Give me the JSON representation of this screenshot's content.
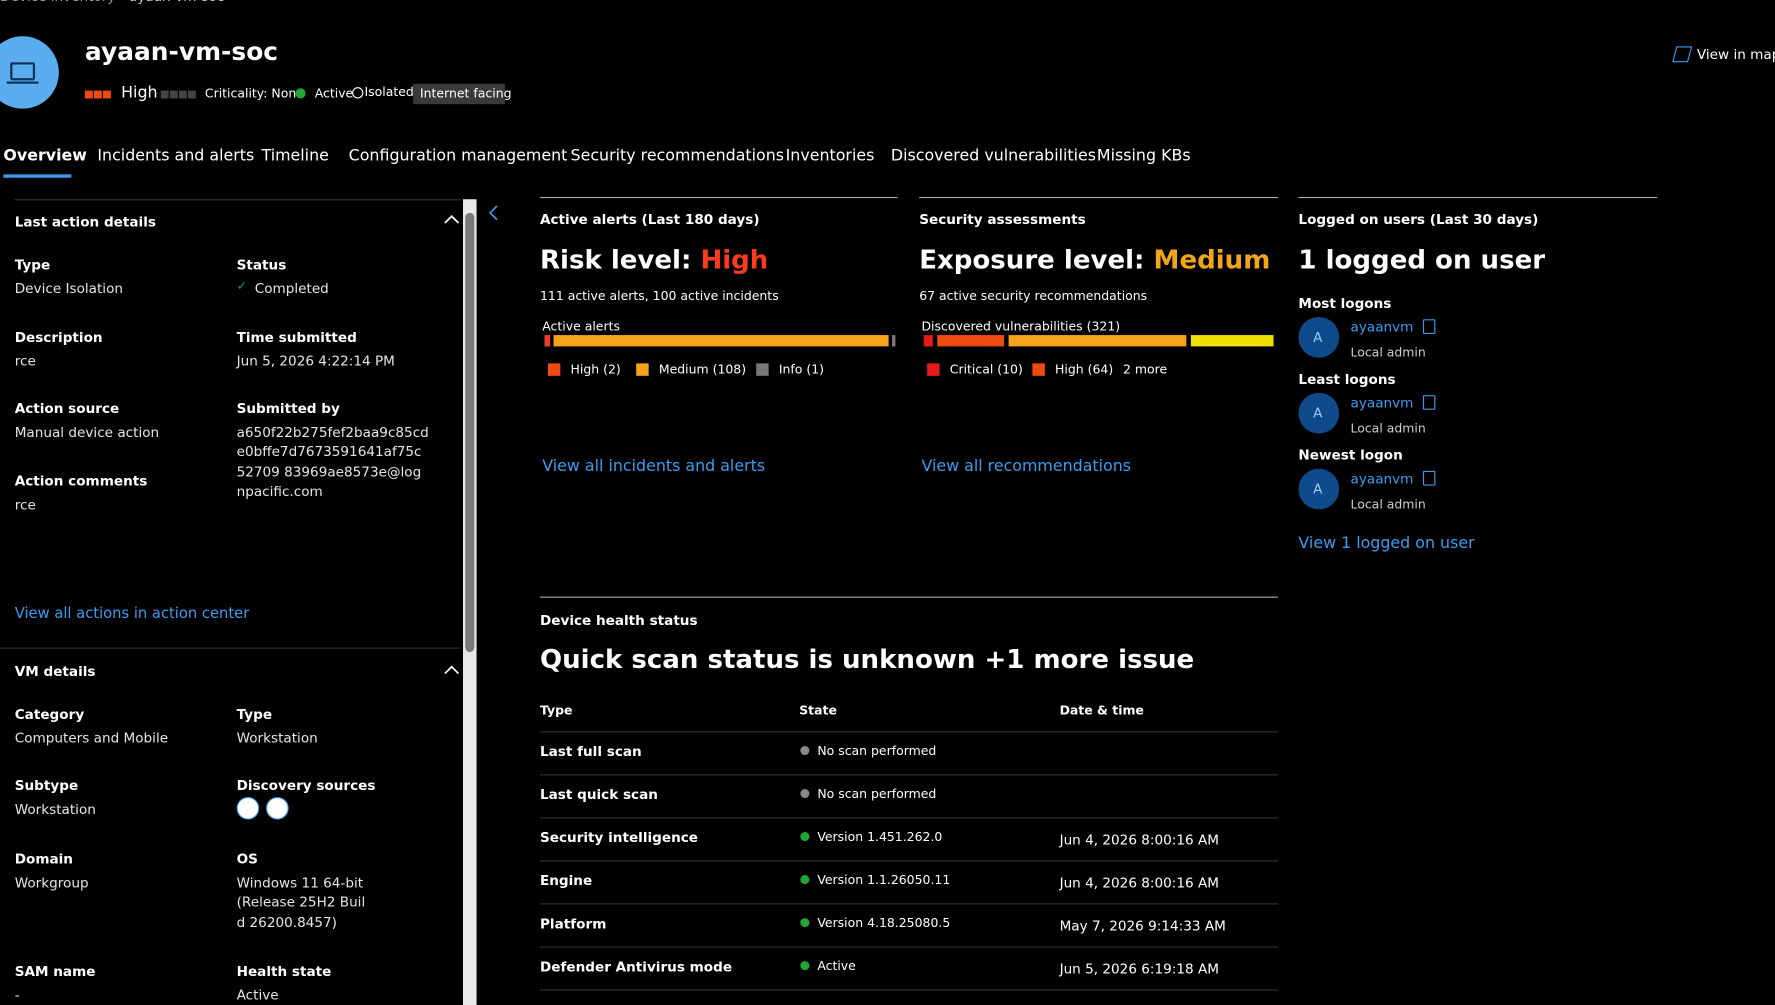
{
  "breadcrumb": [
    "Device inventory",
    "ayaan-vm-soc"
  ],
  "header": {
    "title": "ayaan-vm-soc",
    "risk": "High",
    "criticality": "Criticality: None",
    "status": "Active",
    "isolated": "Isolated",
    "tag": "Internet facing",
    "view_in_map": "View in map"
  },
  "tabs": [
    "Overview",
    "Incidents and alerts",
    "Timeline",
    "Configuration management",
    "Security recommendations",
    "Inventories",
    "Discovered vulnerabilities",
    "Missing KBs"
  ],
  "last_action": {
    "title": "Last action details",
    "fields": [
      {
        "label": "Type",
        "value": "Device Isolation"
      },
      {
        "label": "Status",
        "value": "Completed"
      },
      {
        "label": "Description",
        "value": "rce"
      },
      {
        "label": "Time submitted",
        "value": "Jun 5, 2026 4:22:14 PM"
      },
      {
        "label": "Action source",
        "value": "Manual device action"
      },
      {
        "label": "Submitted by",
        "value": "a650f22b275fef2baa9c85cde0bffe7d7673591641af75c52709 83969ae8573e@lognpacific.com"
      },
      {
        "label": "Action comments",
        "value": "rce"
      }
    ],
    "link": "View all actions in action center"
  },
  "vm_details": {
    "title": "VM details",
    "fields": [
      {
        "label": "Category",
        "value": "Computers and Mobile"
      },
      {
        "label": "Type",
        "value": "Workstation"
      },
      {
        "label": "Subtype",
        "value": "Workstation"
      },
      {
        "label": "Discovery sources"
      },
      {
        "label": "Domain",
        "value": "Workgroup"
      },
      {
        "label": "OS",
        "value": "Windows 11 64-bit (Release 25H2 Build 26200.8457)"
      },
      {
        "label": "SAM name",
        "value": "-"
      },
      {
        "label": "Health state",
        "value": "Active"
      }
    ]
  },
  "alerts": {
    "title": "Active alerts (Last 180 days)",
    "heading": "Risk level: ",
    "level": "High",
    "summary": "111 active alerts, 100 active incidents",
    "bar_label": "Active alerts",
    "legend": [
      "High (2)",
      "Medium (108)",
      "Info (1)"
    ],
    "link": "View all incidents and alerts"
  },
  "assessments": {
    "title": "Security assessments",
    "heading": "Exposure level: ",
    "level": "Medium",
    "summary": "67 active security recommendations",
    "bar_label": "Discovered vulnerabilities (321)",
    "legend": [
      "Critical (10)",
      "High (64)",
      "2 more"
    ],
    "link": "View all recommendations"
  },
  "logons": {
    "title": "Logged on users (Last 30 days)",
    "heading": "1 logged on user",
    "groups": [
      {
        "title": "Most logons",
        "initial": "A",
        "user": "ayaanvm",
        "role": "Local admin"
      },
      {
        "title": "Least logons",
        "initial": "A",
        "user": "ayaanvm",
        "role": "Local admin"
      },
      {
        "title": "Newest logon",
        "initial": "A",
        "user": "ayaanvm",
        "role": "Local admin"
      }
    ],
    "link": "View 1 logged on user"
  },
  "health": {
    "title": "Device health status",
    "heading": "Quick scan status is unknown +1 more issue",
    "columns": [
      "Type",
      "State",
      "Date & time"
    ],
    "rows": [
      [
        "Last full scan",
        "No scan performed",
        null
      ],
      [
        "Last quick scan",
        "No scan performed",
        null
      ],
      [
        "Security intelligence",
        "Version 1.451.262.0",
        "Jun 4, 2026 8:00:16 AM"
      ],
      [
        "Engine",
        "Version 1.1.26050.11",
        "Jun 4, 2026 8:00:16 AM"
      ],
      [
        "Platform",
        "Version 4.18.25080.5",
        "May 7, 2026 9:14:33 AM"
      ],
      [
        "Defender Antivirus mode",
        "Active",
        "Jun 5, 2026 6:19:18 AM"
      ]
    ],
    "dot_colors": [
      "#8a8a8a",
      "#8a8a8a",
      "#22a535",
      "#22a535",
      "#22a535",
      "#22a535"
    ]
  }
}
